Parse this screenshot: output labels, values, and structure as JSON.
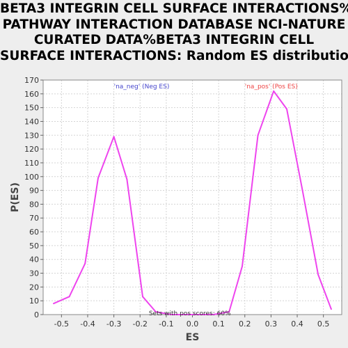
{
  "title_lines": [
    "BETA3 INTEGRIN CELL SURFACE INTERACTIONS%",
    "PATHWAY INTERACTION DATABASE NCI-NATURE",
    "CURATED DATA%BETA3 INTEGRIN CELL",
    "SURFACE INTERACTIONS: Random ES distribution"
  ],
  "colors": {
    "line": "#ee44ee",
    "neg_label": "#4444cc",
    "pos_label": "#ee4444"
  },
  "chart_data": {
    "type": "line",
    "xlabel": "ES",
    "ylabel": "P(ES)",
    "xlim": [
      -0.57,
      0.57
    ],
    "ylim": [
      0,
      170
    ],
    "x_ticks": [
      -0.5,
      -0.4,
      -0.3,
      -0.2,
      -0.1,
      0.0,
      0.1,
      0.2,
      0.3,
      0.4,
      0.5
    ],
    "x_tick_labels": [
      "-0.5",
      "-0.4",
      "-0.3",
      "-0.2",
      "-0.1",
      "0.0",
      "0.1",
      "0.2",
      "0.3",
      "0.4",
      "0.5"
    ],
    "y_ticks": [
      0,
      10,
      20,
      30,
      40,
      50,
      60,
      70,
      80,
      90,
      100,
      110,
      120,
      130,
      140,
      150,
      160,
      170
    ],
    "y_tick_labels": [
      "0",
      "10",
      "20",
      "30",
      "40",
      "50",
      "60",
      "70",
      "80",
      "90",
      "100",
      "110",
      "120",
      "130",
      "140",
      "150",
      "160",
      "170"
    ],
    "grid": true,
    "series": [
      {
        "x": [
          -0.53,
          -0.47,
          -0.41,
          -0.36,
          -0.3,
          -0.25,
          -0.19,
          -0.14,
          -0.08,
          -0.03,
          0.03,
          0.08,
          0.14,
          0.19,
          0.25,
          0.31,
          0.36,
          0.42,
          0.48,
          0.53
        ],
        "y": [
          8,
          13,
          37,
          99,
          129,
          98,
          13,
          2,
          0,
          0,
          0,
          0,
          2,
          35,
          130,
          162,
          149,
          90,
          29,
          4
        ]
      }
    ],
    "annotations": [
      {
        "text": "'na_neg' (Neg ES)",
        "x": -0.3,
        "y": 166,
        "color_key": "neg_label"
      },
      {
        "text": "'na_pos' (Pos ES)",
        "x": 0.2,
        "y": 166,
        "color_key": "pos_label"
      },
      {
        "text": "Sets with pos scores: 60%",
        "x": -0.01,
        "y": 1.5,
        "color_key": ""
      }
    ]
  }
}
